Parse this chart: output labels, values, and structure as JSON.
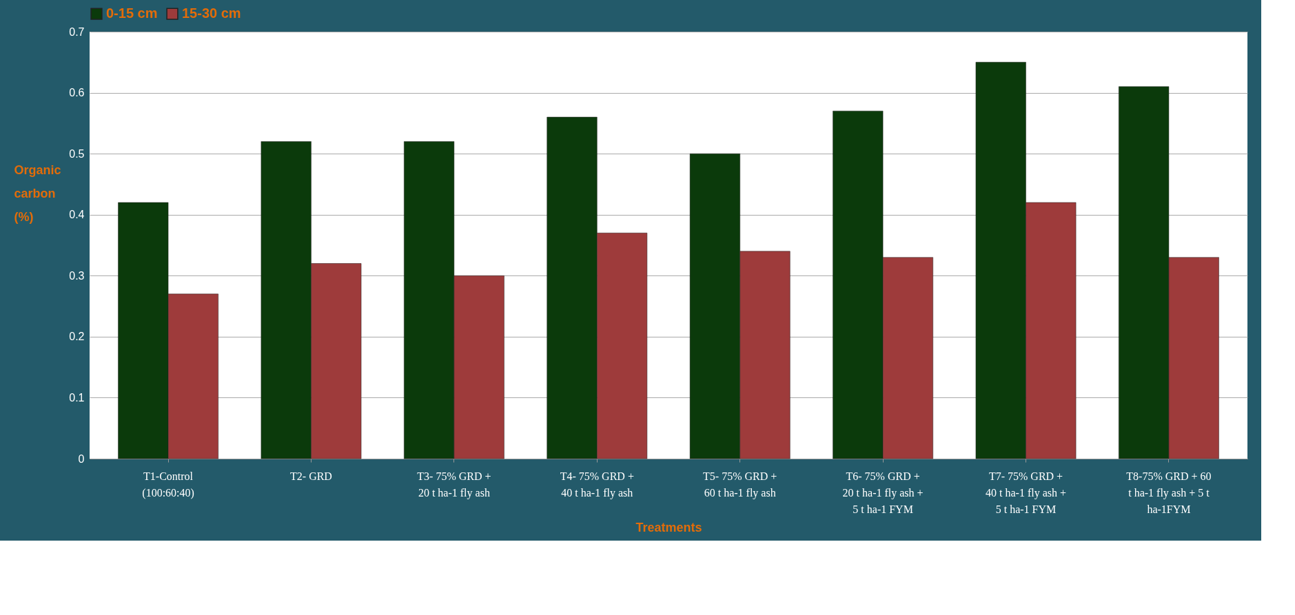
{
  "chart_data": {
    "type": "bar",
    "categories": [
      "T1-Control\n(100:60:40)",
      "T2- GRD",
      "T3- 75% GRD +\n20 t ha-1 fly ash",
      "T4- 75% GRD +\n40 t ha-1 fly ash",
      "T5- 75% GRD +\n60 t ha-1 fly ash",
      "T6- 75% GRD +\n20 t ha-1 fly ash +\n5 t ha-1 FYM",
      "T7- 75% GRD +\n40 t ha-1 fly ash +\n5 t ha-1 FYM",
      "T8-75% GRD + 60\nt ha-1 fly ash + 5 t\nha-1FYM"
    ],
    "series": [
      {
        "name": "0-15 cm",
        "color": "#0b3a0b",
        "values": [
          0.42,
          0.52,
          0.52,
          0.56,
          0.5,
          0.57,
          0.65,
          0.61
        ]
      },
      {
        "name": "15-30 cm",
        "color": "#9e3b3b",
        "values": [
          0.27,
          0.32,
          0.3,
          0.37,
          0.34,
          0.33,
          0.42,
          0.33
        ]
      }
    ],
    "xlabel": "Treatments",
    "ylabel": "Organic carbon (%)",
    "ylim": [
      0,
      0.7
    ],
    "yticks": [
      0,
      0.1,
      0.2,
      0.3,
      0.4,
      0.5,
      0.6,
      0.7
    ],
    "grid": "y",
    "legend": "top"
  }
}
